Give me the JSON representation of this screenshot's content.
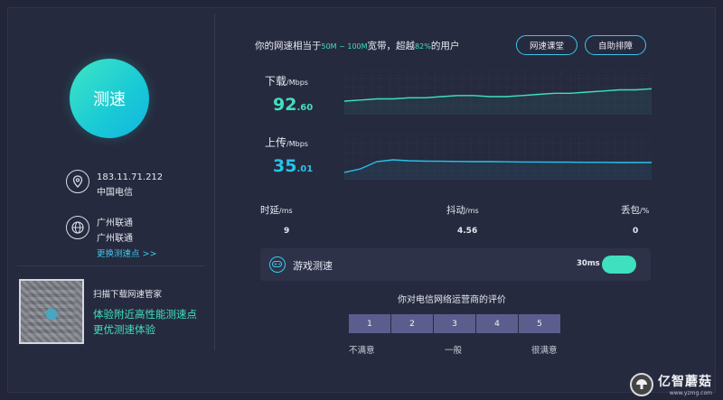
{
  "left": {
    "speed_button": "测速",
    "ip": "183.11.71.212",
    "isp": "中国电信",
    "node_line1": "广州联通",
    "node_line2": "广州联通",
    "change_node": "更换测速点 >>",
    "qr_title": "扫描下载网速管家",
    "qr_desc_line1": "体验附近高性能测速点",
    "qr_desc_line2": "更优测速体验"
  },
  "header": {
    "prefix": "你的网速相当于",
    "bandwidth": "50M ~ 100M",
    "mid": "宽带，超越",
    "percent": "82%",
    "suffix": "的用户",
    "btn_course": "网速课堂",
    "btn_troubleshoot": "自助排障"
  },
  "download": {
    "label": "下载",
    "unit": "/Mbps",
    "value_int": "92",
    "value_dec": ".60",
    "samples": [
      12,
      13,
      14,
      14,
      15,
      15,
      16,
      17,
      17,
      16,
      16,
      17,
      18,
      19,
      19,
      20,
      21,
      22,
      22,
      23
    ]
  },
  "upload": {
    "label": "上传",
    "unit": "/Mbps",
    "value_int": "35",
    "value_dec": ".01",
    "samples": [
      4,
      6,
      10,
      11,
      10.5,
      10.3,
      10.2,
      10.1,
      10,
      10,
      9.9,
      9.8,
      9.8,
      9.7,
      9.7,
      9.6,
      9.6,
      9.5,
      9.5,
      9.5
    ]
  },
  "stats": {
    "latency_label": "时延",
    "latency_unit": "/ms",
    "latency_value": "9",
    "jitter_label": "抖动",
    "jitter_unit": "/ms",
    "jitter_value": "4.56",
    "loss_label": "丢包",
    "loss_unit": "/%",
    "loss_value": "0"
  },
  "game": {
    "label": "游戏测速",
    "ms": "30ms"
  },
  "rating": {
    "title": "你对电信网络运营商的评价",
    "options": [
      "1",
      "2",
      "3",
      "4",
      "5"
    ],
    "low": "不满意",
    "mid": "一般",
    "high": "很满意"
  },
  "watermark": {
    "main": "亿智蘑菇",
    "sub": "www.yzmg.com"
  },
  "colors": {
    "accent": "#3ee0c0",
    "accent_blue": "#26c3ea",
    "background": "#262a3e"
  }
}
